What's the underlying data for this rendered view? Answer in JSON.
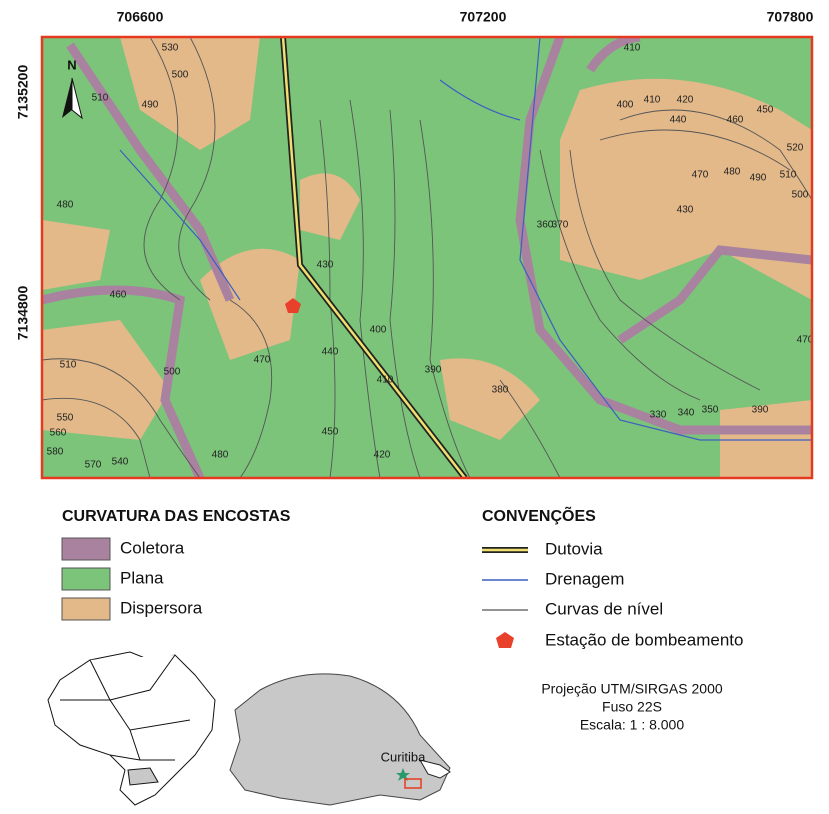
{
  "map": {
    "x_labels": [
      "706600",
      "707200",
      "707800"
    ],
    "y_labels": [
      "7135200",
      "7134800"
    ],
    "north": "N",
    "contour_labels": [
      "530",
      "500",
      "510",
      "490",
      "480",
      "460",
      "510",
      "500",
      "470",
      "550",
      "560",
      "580",
      "570",
      "540",
      "480",
      "430",
      "400",
      "440",
      "410",
      "450",
      "420",
      "390",
      "380",
      "360",
      "370",
      "410",
      "400",
      "410",
      "420",
      "440",
      "460",
      "450",
      "520",
      "470",
      "480",
      "490",
      "510",
      "500",
      "430",
      "470",
      "330",
      "340",
      "350",
      "390"
    ],
    "legend": {
      "curvature": {
        "title": "CURVATURA DAS ENCOSTAS",
        "items": [
          "Coletora",
          "Plana",
          "Dispersora"
        ]
      },
      "conventions": {
        "title": "CONVENÇÕES",
        "items": [
          "Dutovia",
          "Drenagem",
          "Curvas de nível",
          "Estação de bombeamento"
        ]
      }
    },
    "projection": [
      "Projeção UTM/SIRGAS 2000",
      "Fuso 22S",
      "Escala: 1 : 8.000"
    ],
    "inset": {
      "city": "Curitiba"
    }
  }
}
